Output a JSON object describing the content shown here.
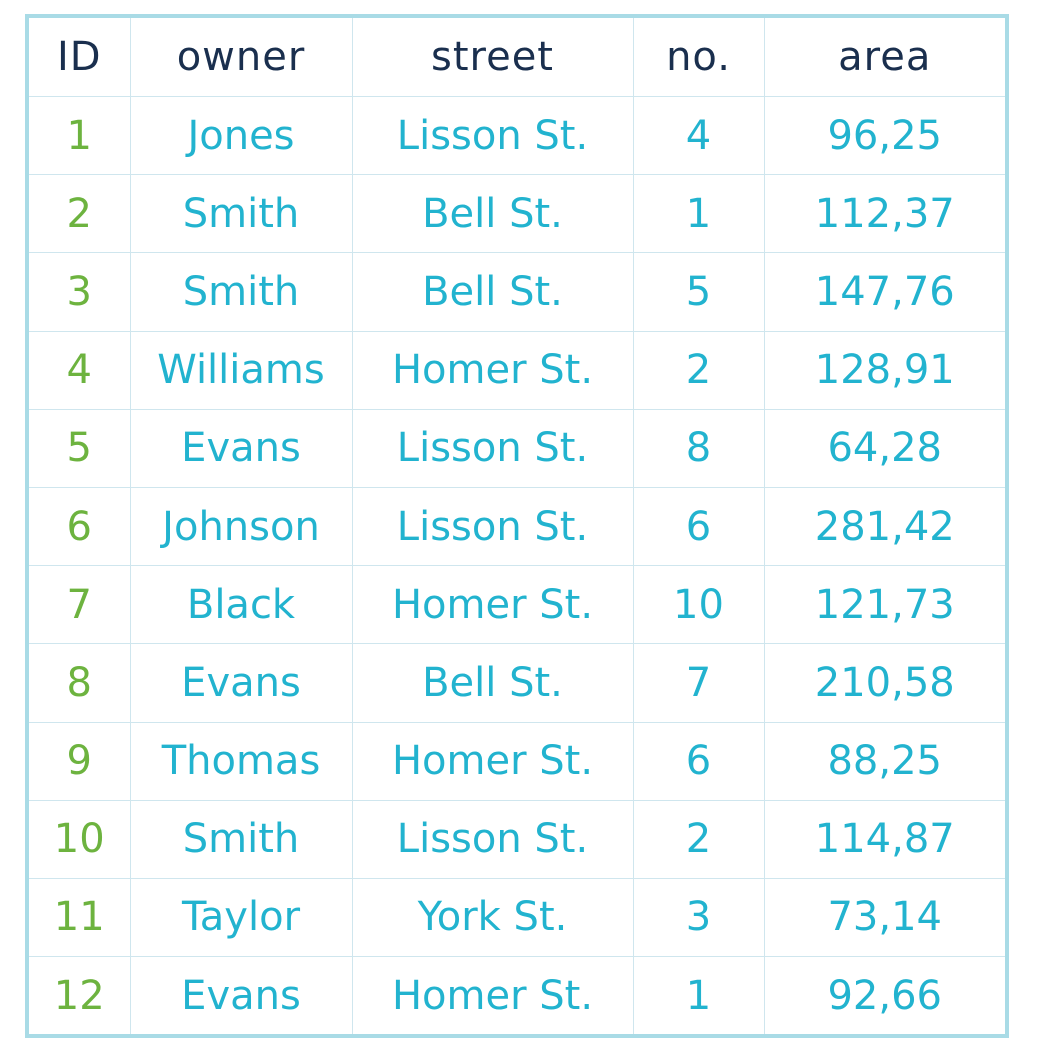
{
  "table": {
    "headers": [
      "ID",
      "owner",
      "street",
      "no.",
      "area"
    ],
    "rows": [
      [
        "1",
        "Jones",
        "Lisson St.",
        "4",
        "96,25"
      ],
      [
        "2",
        "Smith",
        "Bell St.",
        "1",
        "112,37"
      ],
      [
        "3",
        "Smith",
        "Bell St.",
        "5",
        "147,76"
      ],
      [
        "4",
        "Williams",
        "Homer St.",
        "2",
        "128,91"
      ],
      [
        "5",
        "Evans",
        "Lisson St.",
        "8",
        "64,28"
      ],
      [
        "6",
        "Johnson",
        "Lisson St.",
        "6",
        "281,42"
      ],
      [
        "7",
        "Black",
        "Homer St.",
        "10",
        "121,73"
      ],
      [
        "8",
        "Evans",
        "Bell St.",
        "7",
        "210,58"
      ],
      [
        "9",
        "Thomas",
        "Homer St.",
        "6",
        "88,25"
      ],
      [
        "10",
        "Smith",
        "Lisson St.",
        "2",
        "114,87"
      ],
      [
        "11",
        "Taylor",
        "York St.",
        "3",
        "73,14"
      ],
      [
        "12",
        "Evans",
        "Homer St.",
        "1",
        "92,66"
      ]
    ]
  },
  "colors": {
    "header_text": "#1a2f4e",
    "id_text": "#6db33f",
    "cell_text": "#22b3cf",
    "frame_border": "#a9dbe6",
    "grid_lines": "#cfe6ee"
  }
}
